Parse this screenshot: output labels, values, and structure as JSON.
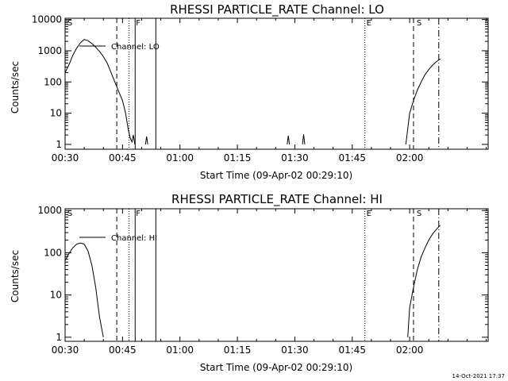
{
  "footer": {
    "stamp": "14-Oct-2021 17:37"
  },
  "chart_data": [
    {
      "type": "line",
      "title": "RHESSI PARTICLE_RATE Channel: LO",
      "xlabel": "Start Time (09-Apr-02 00:29:10)",
      "ylabel": "Counts/sec",
      "yscale": "log",
      "xlim": [
        30,
        140.5
      ],
      "ylim": [
        0.7,
        11000
      ],
      "x_unit": "minutes after 00:00 UT on 09-Apr-02",
      "x_ticks": [
        30,
        45,
        60,
        75,
        90,
        105,
        120
      ],
      "x_tick_labels": [
        "00:30",
        "00:45",
        "01:00",
        "01:15",
        "01:30",
        "01:45",
        "02:00"
      ],
      "y_ticks": [
        1,
        10,
        100,
        1000,
        10000
      ],
      "y_tick_labels": [
        "1",
        "10",
        "100",
        "1000",
        "10000"
      ],
      "legend": {
        "label": "Channel: LO",
        "placement": "top-left"
      },
      "markers": [
        {
          "x": 30.4,
          "label": "S"
        },
        {
          "x": 48.3,
          "label": "F"
        },
        {
          "x": 108.5,
          "label": "E"
        },
        {
          "x": 121.6,
          "label": "S"
        }
      ],
      "vlines": [
        {
          "x": 43.5,
          "style": "dashed"
        },
        {
          "x": 46.7,
          "style": "dotted"
        },
        {
          "x": 48.3,
          "style": "solid"
        },
        {
          "x": 53.7,
          "style": "solid"
        },
        {
          "x": 108.3,
          "style": "dotted"
        },
        {
          "x": 121.0,
          "style": "dashed"
        },
        {
          "x": 127.6,
          "style": "dashdot"
        }
      ],
      "series": [
        {
          "segments": [
            [
              [
                30,
                200
              ],
              [
                31,
                350
              ],
              [
                32,
                700
              ],
              [
                33,
                1200
              ],
              [
                34,
                1800
              ],
              [
                35,
                2300
              ],
              [
                36,
                2100
              ],
              [
                37,
                1700
              ],
              [
                38,
                1300
              ],
              [
                39,
                950
              ],
              [
                40,
                650
              ],
              [
                41,
                400
              ],
              [
                42,
                200
              ],
              [
                43,
                100
              ],
              [
                44,
                50
              ],
              [
                45,
                25
              ],
              [
                45.8,
                10
              ],
              [
                46.5,
                3
              ],
              [
                47,
                1.6
              ],
              [
                47.5,
                1.2
              ],
              [
                47.8,
                2
              ],
              [
                48,
                1.5
              ],
              [
                48.2,
                1
              ]
            ],
            [
              [
                51,
                1
              ],
              [
                51.3,
                1.8
              ],
              [
                51.6,
                1
              ]
            ],
            [
              [
                88,
                1
              ],
              [
                88.3,
                1.9
              ],
              [
                88.6,
                1
              ]
            ],
            [
              [
                92,
                1
              ],
              [
                92.3,
                2.1
              ],
              [
                92.6,
                1
              ]
            ],
            [
              [
                119,
                1
              ],
              [
                120,
                10
              ],
              [
                121,
                25
              ],
              [
                122,
                55
              ],
              [
                123,
                100
              ],
              [
                124,
                170
              ],
              [
                125,
                250
              ],
              [
                126,
                350
              ],
              [
                127,
                450
              ],
              [
                128,
                550
              ]
            ]
          ]
        }
      ]
    },
    {
      "type": "line",
      "title": "RHESSI PARTICLE_RATE Channel: HI",
      "xlabel": "Start Time (09-Apr-02 00:29:10)",
      "ylabel": "Counts/sec",
      "yscale": "log",
      "xlim": [
        30,
        140.5
      ],
      "ylim": [
        0.8,
        1100
      ],
      "x_unit": "minutes after 00:00 UT on 09-Apr-02",
      "x_ticks": [
        30,
        45,
        60,
        75,
        90,
        105,
        120
      ],
      "x_tick_labels": [
        "00:30",
        "00:45",
        "01:00",
        "01:15",
        "01:30",
        "01:45",
        "02:00"
      ],
      "y_ticks": [
        1,
        10,
        100,
        1000
      ],
      "y_tick_labels": [
        "1",
        "10",
        "100",
        "1000"
      ],
      "legend": {
        "label": "Channel: HI",
        "placement": "top-left"
      },
      "markers": [
        {
          "x": 30.4,
          "label": "S"
        },
        {
          "x": 48.3,
          "label": "F"
        },
        {
          "x": 108.5,
          "label": "E"
        },
        {
          "x": 121.6,
          "label": "S"
        }
      ],
      "vlines": [
        {
          "x": 43.5,
          "style": "dashed"
        },
        {
          "x": 46.7,
          "style": "dotted"
        },
        {
          "x": 48.3,
          "style": "solid"
        },
        {
          "x": 53.7,
          "style": "solid"
        },
        {
          "x": 108.3,
          "style": "dotted"
        },
        {
          "x": 121.0,
          "style": "dashed"
        },
        {
          "x": 127.6,
          "style": "dashdot"
        }
      ],
      "series": [
        {
          "segments": [
            [
              [
                30,
                65
              ],
              [
                31,
                95
              ],
              [
                32,
                130
              ],
              [
                33,
                160
              ],
              [
                34,
                170
              ],
              [
                35,
                160
              ],
              [
                36,
                110
              ],
              [
                37,
                50
              ],
              [
                38,
                15
              ],
              [
                39,
                3
              ],
              [
                40,
                1
              ]
            ],
            [
              [
                119.5,
                1
              ],
              [
                120,
                5
              ],
              [
                121,
                15
              ],
              [
                122,
                40
              ],
              [
                123,
                80
              ],
              [
                124,
                130
              ],
              [
                125,
                200
              ],
              [
                126,
                280
              ],
              [
                127,
                360
              ],
              [
                128,
                450
              ]
            ]
          ]
        }
      ]
    }
  ]
}
